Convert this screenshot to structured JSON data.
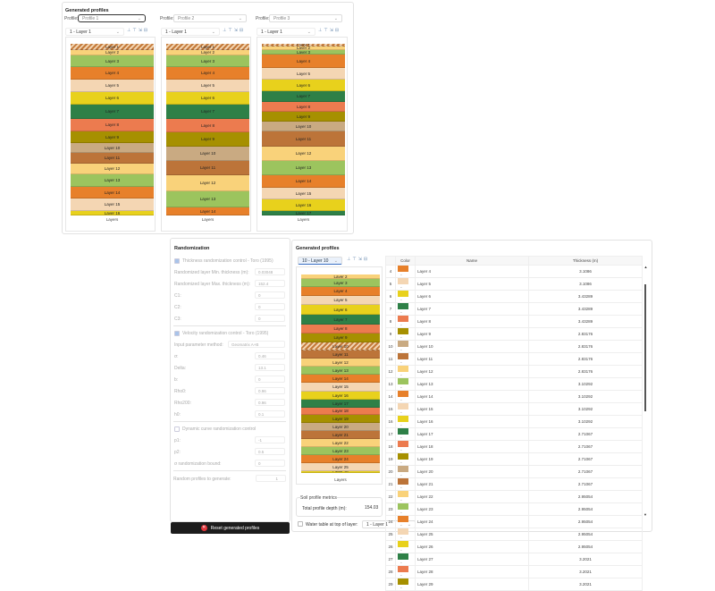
{
  "top": {
    "title": "Generated profiles",
    "profile_label": "Profile:",
    "profiles": [
      {
        "name": "Profile 1",
        "layer_select": "1 - Layer 1",
        "layers": [
          "Layer 1",
          "Layer 2",
          "Layer 3",
          "Layer 4",
          "Layer 5",
          "Layer 6",
          "Layer 7",
          "Layer 8",
          "Layer 9",
          "Layer 10",
          "Layer 11",
          "Layer 12",
          "Layer 13",
          "Layer 14",
          "Layer 15",
          "Layer 16"
        ]
      },
      {
        "name": "Profile 2",
        "layer_select": "1 - Layer 1",
        "layers": [
          "Layer 1",
          "Layer 2",
          "Layer 3",
          "Layer 4",
          "Layer 5",
          "Layer 6",
          "Layer 7",
          "Layer 8",
          "Layer 9",
          "Layer 10",
          "Layer 11",
          "Layer 12",
          "Layer 13",
          "Layer 14"
        ]
      },
      {
        "name": "Profile 3",
        "layer_select": "1 - Layer 1",
        "layers": [
          "Layer 1",
          "Layer 2",
          "Layer 3",
          "Layer 4",
          "Layer 5",
          "Layer 6",
          "Layer 7",
          "Layer 8",
          "Layer 9",
          "Layer 10",
          "Layer 11",
          "Layer 12",
          "Layer 13",
          "Layer 14",
          "Layer 15",
          "Layer 16",
          "Layer 17"
        ]
      }
    ],
    "axis_label": "Layers"
  },
  "colors": [
    "#c47a3a",
    "#f9d27a",
    "#9cc45e",
    "#e7802a",
    "#f4d6b3",
    "#e8d11c",
    "#2e8047",
    "#ec7b4f",
    "#a69000",
    "#c9aa82",
    "#bc7439"
  ],
  "randomization": {
    "title": "Randomization",
    "thickness_check": "Thickness randomization control - Toro (1995)",
    "thickness_fields": [
      {
        "label": "Randomized layer Min. thickness (m):",
        "value": "0.03048"
      },
      {
        "label": "Randomized layer Max. thickness (m):",
        "value": "152.4"
      },
      {
        "label": "C1:",
        "value": "0"
      },
      {
        "label": "C2:",
        "value": "0"
      },
      {
        "label": "C3:",
        "value": "0"
      }
    ],
    "velocity_check": "Velocity randomization control - Toro (1995)",
    "input_method_label": "Input parameter method:",
    "input_method_value": "Geomatrix A+B",
    "velocity_fields": [
      {
        "label": "σ:",
        "value": "0.46"
      },
      {
        "label": "Delta:",
        "value": "13.1"
      },
      {
        "label": "b:",
        "value": "0"
      },
      {
        "label": "Rho0:",
        "value": "0.96"
      },
      {
        "label": "Rho200:",
        "value": "0.96"
      },
      {
        "label": "h0:",
        "value": "0.1"
      }
    ],
    "dynamic_check": "Dynamic curve randomization control",
    "dynamic_fields": [
      {
        "label": "p1:",
        "value": "-1"
      },
      {
        "label": "p2:",
        "value": "0.5"
      },
      {
        "label": "σ randomization bound:",
        "value": "0"
      }
    ],
    "random_profiles_label": "Random profiles to generate:",
    "random_profiles_value": "1",
    "reset_button": "Reset generated profiles"
  },
  "main": {
    "title": "Generated profiles",
    "layer_select": "10 - Layer 10",
    "profile_layers": [
      "Layer 2",
      "Layer 3",
      "Layer 4",
      "Layer 5",
      "Layer 6",
      "Layer 7",
      "Layer 8",
      "Layer 9",
      "Layer 10",
      "Layer 11",
      "Layer 12",
      "Layer 13",
      "Layer 14",
      "Layer 15",
      "Layer 16",
      "Layer 17",
      "Layer 18",
      "Layer 19",
      "Layer 20",
      "Layer 21",
      "Layer 22",
      "Layer 23",
      "Layer 24",
      "Layer 25",
      "Layer 26"
    ],
    "axis_label": "Layers",
    "metrics_title": "Soil profile metrics",
    "depth_label": "Total profile depth (m):",
    "depth_value": "154.03",
    "water_table_label": "Water table at top of layer:",
    "water_table_value": "1 - Layer 1",
    "table": {
      "headers": [
        "",
        "Color",
        "Name",
        "Thickness (m)"
      ],
      "rows": [
        {
          "n": "4",
          "name": "Layer 4",
          "t": "3.1086"
        },
        {
          "n": "5",
          "name": "Layer 5",
          "t": "3.1086"
        },
        {
          "n": "6",
          "name": "Layer 6",
          "t": "3.43289"
        },
        {
          "n": "7",
          "name": "Layer 7",
          "t": "3.43289"
        },
        {
          "n": "8",
          "name": "Layer 8",
          "t": "3.43289"
        },
        {
          "n": "9",
          "name": "Layer 9",
          "t": "2.83176"
        },
        {
          "n": "10",
          "name": "Layer 10",
          "t": "2.83176"
        },
        {
          "n": "11",
          "name": "Layer 11",
          "t": "2.83176"
        },
        {
          "n": "12",
          "name": "Layer 12",
          "t": "2.83176"
        },
        {
          "n": "13",
          "name": "Layer 13",
          "t": "3.10292"
        },
        {
          "n": "14",
          "name": "Layer 14",
          "t": "3.10292"
        },
        {
          "n": "15",
          "name": "Layer 15",
          "t": "3.10292"
        },
        {
          "n": "16",
          "name": "Layer 16",
          "t": "3.10292"
        },
        {
          "n": "17",
          "name": "Layer 17",
          "t": "2.71067"
        },
        {
          "n": "18",
          "name": "Layer 18",
          "t": "2.71067"
        },
        {
          "n": "19",
          "name": "Layer 19",
          "t": "2.71067"
        },
        {
          "n": "20",
          "name": "Layer 20",
          "t": "2.71067"
        },
        {
          "n": "21",
          "name": "Layer 21",
          "t": "2.71067"
        },
        {
          "n": "22",
          "name": "Layer 22",
          "t": "2.95054"
        },
        {
          "n": "23",
          "name": "Layer 23",
          "t": "2.95054"
        },
        {
          "n": "24",
          "name": "Layer 24",
          "t": "2.95054"
        },
        {
          "n": "25",
          "name": "Layer 25",
          "t": "2.95054"
        },
        {
          "n": "26",
          "name": "Layer 26",
          "t": "2.95054"
        },
        {
          "n": "27",
          "name": "Layer 27",
          "t": "3.2021"
        },
        {
          "n": "28",
          "name": "Layer 28",
          "t": "3.2021"
        },
        {
          "n": "29",
          "name": "Layer 29",
          "t": "3.2021"
        }
      ]
    }
  }
}
